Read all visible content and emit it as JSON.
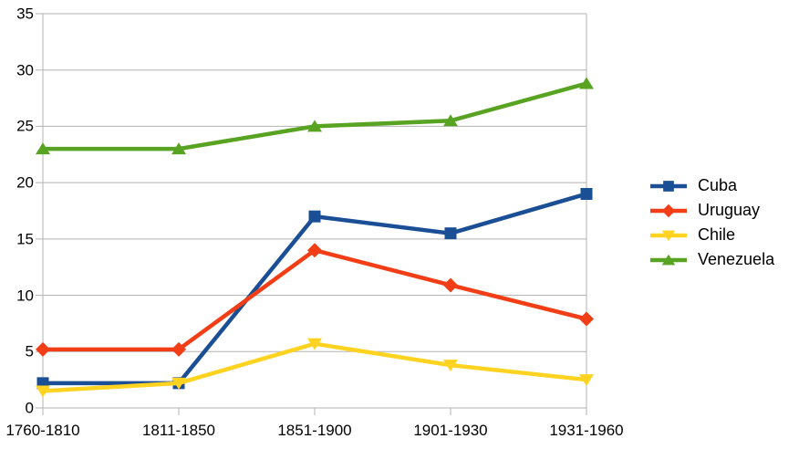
{
  "chart_data": {
    "type": "line",
    "categories": [
      "1760-1810",
      "1811-1850",
      "1851-1900",
      "1901-1930",
      "1931-1960"
    ],
    "series": [
      {
        "name": "Cuba",
        "color": "#1B4F95",
        "marker": "square",
        "values": [
          2.2,
          2.2,
          17.0,
          15.5,
          19.0
        ]
      },
      {
        "name": "Uruguay",
        "color": "#F23E16",
        "marker": "diamond",
        "values": [
          5.2,
          5.2,
          14.0,
          10.9,
          7.9
        ]
      },
      {
        "name": "Chile",
        "color": "#FFD320",
        "marker": "triangle-down",
        "values": [
          1.5,
          2.2,
          5.7,
          3.8,
          2.5
        ]
      },
      {
        "name": "Venezuela",
        "color": "#58A322",
        "marker": "triangle-up",
        "values": [
          23.0,
          23.0,
          25.0,
          25.5,
          28.8
        ]
      }
    ],
    "xlabel": "",
    "ylabel": "",
    "ylim": [
      0,
      35
    ],
    "y_ticks": [
      0,
      5,
      10,
      15,
      20,
      25,
      30,
      35
    ],
    "grid": "horizontal",
    "legend_position": "right",
    "axis_color": "#b3b3b3",
    "text_color": "#000000",
    "background_color": "#ffffff"
  }
}
